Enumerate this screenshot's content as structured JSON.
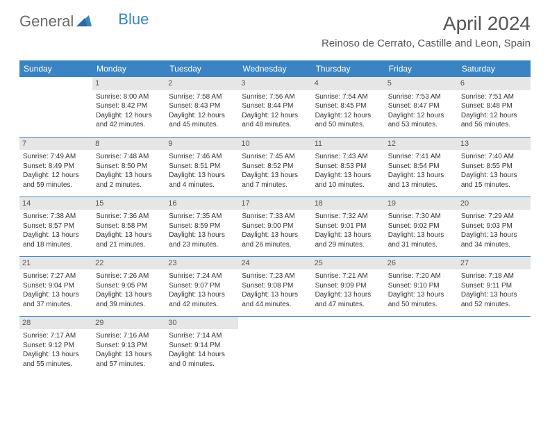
{
  "brand": {
    "part1": "General",
    "part2": "Blue"
  },
  "title": "April 2024",
  "location": "Reinoso de Cerrato, Castille and Leon, Spain",
  "logo_colors": {
    "gray": "#6b6b6b",
    "blue": "#3b84c4"
  },
  "header_bg": "#3b84c4",
  "header_text": "#ffffff",
  "daynum_bg": "#e6e6e6",
  "border_color": "#3b84c4",
  "weekdays": [
    "Sunday",
    "Monday",
    "Tuesday",
    "Wednesday",
    "Thursday",
    "Friday",
    "Saturday"
  ],
  "weeks": [
    [
      null,
      {
        "n": "1",
        "sunrise": "8:00 AM",
        "sunset": "8:42 PM",
        "day_l1": "Daylight: 12 hours",
        "day_l2": "and 42 minutes."
      },
      {
        "n": "2",
        "sunrise": "7:58 AM",
        "sunset": "8:43 PM",
        "day_l1": "Daylight: 12 hours",
        "day_l2": "and 45 minutes."
      },
      {
        "n": "3",
        "sunrise": "7:56 AM",
        "sunset": "8:44 PM",
        "day_l1": "Daylight: 12 hours",
        "day_l2": "and 48 minutes."
      },
      {
        "n": "4",
        "sunrise": "7:54 AM",
        "sunset": "8:45 PM",
        "day_l1": "Daylight: 12 hours",
        "day_l2": "and 50 minutes."
      },
      {
        "n": "5",
        "sunrise": "7:53 AM",
        "sunset": "8:47 PM",
        "day_l1": "Daylight: 12 hours",
        "day_l2": "and 53 minutes."
      },
      {
        "n": "6",
        "sunrise": "7:51 AM",
        "sunset": "8:48 PM",
        "day_l1": "Daylight: 12 hours",
        "day_l2": "and 56 minutes."
      }
    ],
    [
      {
        "n": "7",
        "sunrise": "7:49 AM",
        "sunset": "8:49 PM",
        "day_l1": "Daylight: 12 hours",
        "day_l2": "and 59 minutes."
      },
      {
        "n": "8",
        "sunrise": "7:48 AM",
        "sunset": "8:50 PM",
        "day_l1": "Daylight: 13 hours",
        "day_l2": "and 2 minutes."
      },
      {
        "n": "9",
        "sunrise": "7:46 AM",
        "sunset": "8:51 PM",
        "day_l1": "Daylight: 13 hours",
        "day_l2": "and 4 minutes."
      },
      {
        "n": "10",
        "sunrise": "7:45 AM",
        "sunset": "8:52 PM",
        "day_l1": "Daylight: 13 hours",
        "day_l2": "and 7 minutes."
      },
      {
        "n": "11",
        "sunrise": "7:43 AM",
        "sunset": "8:53 PM",
        "day_l1": "Daylight: 13 hours",
        "day_l2": "and 10 minutes."
      },
      {
        "n": "12",
        "sunrise": "7:41 AM",
        "sunset": "8:54 PM",
        "day_l1": "Daylight: 13 hours",
        "day_l2": "and 13 minutes."
      },
      {
        "n": "13",
        "sunrise": "7:40 AM",
        "sunset": "8:55 PM",
        "day_l1": "Daylight: 13 hours",
        "day_l2": "and 15 minutes."
      }
    ],
    [
      {
        "n": "14",
        "sunrise": "7:38 AM",
        "sunset": "8:57 PM",
        "day_l1": "Daylight: 13 hours",
        "day_l2": "and 18 minutes."
      },
      {
        "n": "15",
        "sunrise": "7:36 AM",
        "sunset": "8:58 PM",
        "day_l1": "Daylight: 13 hours",
        "day_l2": "and 21 minutes."
      },
      {
        "n": "16",
        "sunrise": "7:35 AM",
        "sunset": "8:59 PM",
        "day_l1": "Daylight: 13 hours",
        "day_l2": "and 23 minutes."
      },
      {
        "n": "17",
        "sunrise": "7:33 AM",
        "sunset": "9:00 PM",
        "day_l1": "Daylight: 13 hours",
        "day_l2": "and 26 minutes."
      },
      {
        "n": "18",
        "sunrise": "7:32 AM",
        "sunset": "9:01 PM",
        "day_l1": "Daylight: 13 hours",
        "day_l2": "and 29 minutes."
      },
      {
        "n": "19",
        "sunrise": "7:30 AM",
        "sunset": "9:02 PM",
        "day_l1": "Daylight: 13 hours",
        "day_l2": "and 31 minutes."
      },
      {
        "n": "20",
        "sunrise": "7:29 AM",
        "sunset": "9:03 PM",
        "day_l1": "Daylight: 13 hours",
        "day_l2": "and 34 minutes."
      }
    ],
    [
      {
        "n": "21",
        "sunrise": "7:27 AM",
        "sunset": "9:04 PM",
        "day_l1": "Daylight: 13 hours",
        "day_l2": "and 37 minutes."
      },
      {
        "n": "22",
        "sunrise": "7:26 AM",
        "sunset": "9:05 PM",
        "day_l1": "Daylight: 13 hours",
        "day_l2": "and 39 minutes."
      },
      {
        "n": "23",
        "sunrise": "7:24 AM",
        "sunset": "9:07 PM",
        "day_l1": "Daylight: 13 hours",
        "day_l2": "and 42 minutes."
      },
      {
        "n": "24",
        "sunrise": "7:23 AM",
        "sunset": "9:08 PM",
        "day_l1": "Daylight: 13 hours",
        "day_l2": "and 44 minutes."
      },
      {
        "n": "25",
        "sunrise": "7:21 AM",
        "sunset": "9:09 PM",
        "day_l1": "Daylight: 13 hours",
        "day_l2": "and 47 minutes."
      },
      {
        "n": "26",
        "sunrise": "7:20 AM",
        "sunset": "9:10 PM",
        "day_l1": "Daylight: 13 hours",
        "day_l2": "and 50 minutes."
      },
      {
        "n": "27",
        "sunrise": "7:18 AM",
        "sunset": "9:11 PM",
        "day_l1": "Daylight: 13 hours",
        "day_l2": "and 52 minutes."
      }
    ],
    [
      {
        "n": "28",
        "sunrise": "7:17 AM",
        "sunset": "9:12 PM",
        "day_l1": "Daylight: 13 hours",
        "day_l2": "and 55 minutes."
      },
      {
        "n": "29",
        "sunrise": "7:16 AM",
        "sunset": "9:13 PM",
        "day_l1": "Daylight: 13 hours",
        "day_l2": "and 57 minutes."
      },
      {
        "n": "30",
        "sunrise": "7:14 AM",
        "sunset": "9:14 PM",
        "day_l1": "Daylight: 14 hours",
        "day_l2": "and 0 minutes."
      },
      null,
      null,
      null,
      null
    ]
  ]
}
